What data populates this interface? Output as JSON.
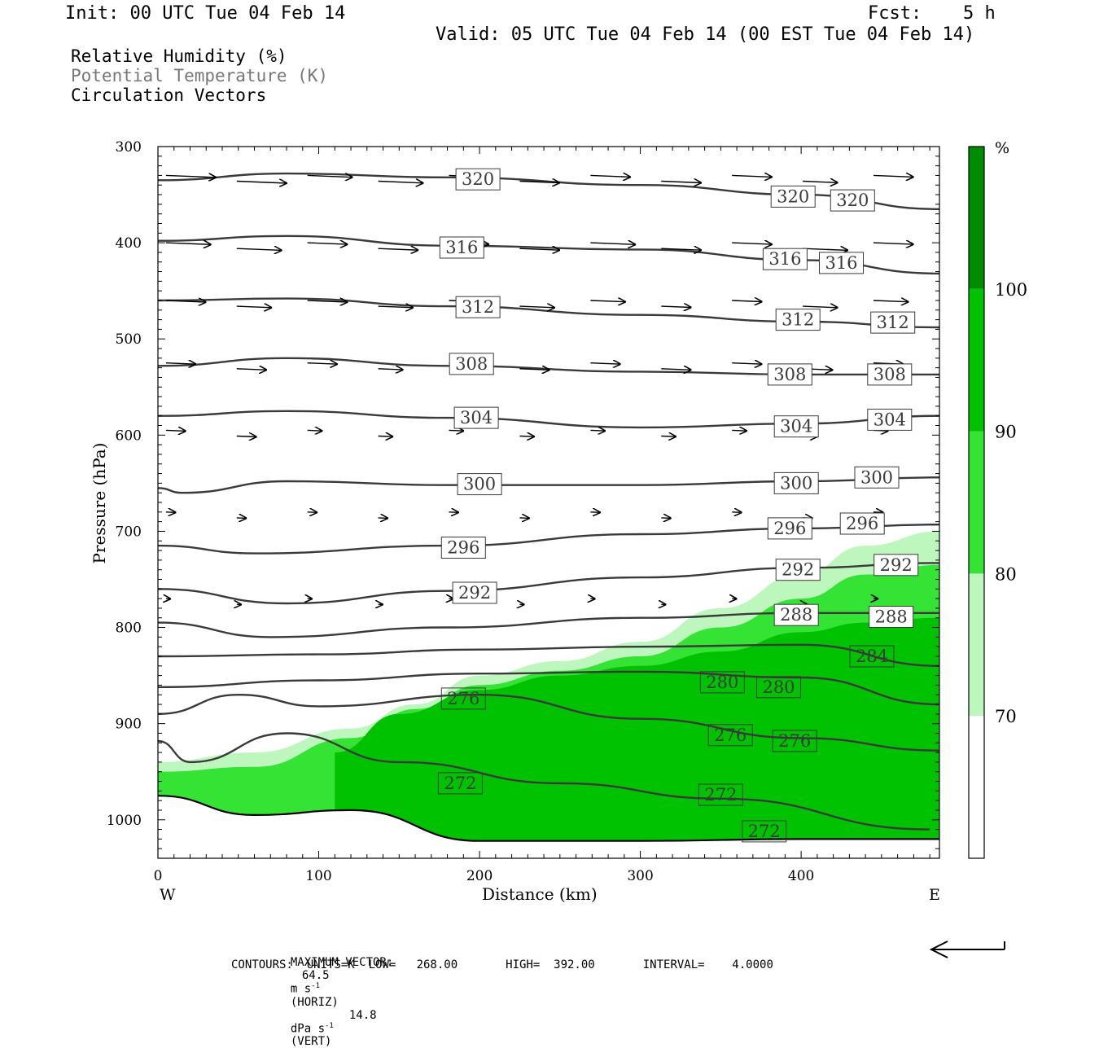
{
  "header": {
    "init": "Init: 00 UTC Tue 04 Feb 14",
    "fcst_label": "Fcst:",
    "fcst_value": "5 h",
    "valid": "Valid: 05 UTC Tue 04 Feb 14 (00 EST Tue 04 Feb 14)"
  },
  "fields": [
    {
      "label": "Relative Humidity (%)",
      "color": "#000000"
    },
    {
      "label": "Potential Temperature (K)",
      "color": "#777777"
    },
    {
      "label": "Circulation Vectors",
      "color": "#000000"
    }
  ],
  "footer": {
    "max_vector_label": "MAXIMUM VECTOR:",
    "max_horiz_value": "64.5",
    "max_horiz_units": "m s",
    "max_horiz_exp": "-1",
    "max_horiz_kind": "(HORIZ)",
    "max_vert_value": "14.8",
    "max_vert_units": "dPa s",
    "max_vert_exp": "-1",
    "max_vert_kind": "(VERT)",
    "contours": "CONTOURS:  UNITS=K  LOW=   268.00       HIGH=  392.00       INTERVAL=    4.0000"
  },
  "chart_data": {
    "type": "cross-section",
    "xlabel": "Distance (km)",
    "ylabel": "Pressure (hPa)",
    "xlim": [
      0,
      486
    ],
    "ylim": [
      1040,
      300
    ],
    "x_ticks": [
      0,
      100,
      200,
      300,
      400
    ],
    "y_ticks": [
      300,
      400,
      500,
      600,
      700,
      800,
      900,
      1000
    ],
    "west_label": "W",
    "east_label": "E",
    "rh_colorbar": {
      "unit": "%",
      "levels": [
        70,
        80,
        90,
        100
      ],
      "colors": [
        "#ffffff",
        "#bdf7bd",
        "#35e335",
        "#00c200",
        "#008c00"
      ]
    },
    "rh_bands": [
      {
        "level": "70-80",
        "color": "#bdf7bd",
        "top": [
          [
            0,
            940
          ],
          [
            60,
            930
          ],
          [
            120,
            905
          ],
          [
            160,
            880
          ],
          [
            200,
            850
          ],
          [
            250,
            835
          ],
          [
            300,
            815
          ],
          [
            350,
            780
          ],
          [
            400,
            745
          ],
          [
            440,
            715
          ],
          [
            486,
            700
          ]
        ]
      },
      {
        "level": "80-90",
        "color": "#35e335",
        "top": [
          [
            0,
            950
          ],
          [
            60,
            945
          ],
          [
            120,
            915
          ],
          [
            160,
            885
          ],
          [
            200,
            860
          ],
          [
            250,
            845
          ],
          [
            300,
            830
          ],
          [
            350,
            800
          ],
          [
            400,
            770
          ],
          [
            440,
            745
          ],
          [
            486,
            735
          ]
        ]
      },
      {
        "level": "90-100",
        "color": "#00c200",
        "top": [
          [
            110,
            930
          ],
          [
            150,
            890
          ],
          [
            200,
            865
          ],
          [
            250,
            850
          ],
          [
            300,
            840
          ],
          [
            350,
            825
          ],
          [
            400,
            805
          ],
          [
            440,
            795
          ],
          [
            486,
            790
          ]
        ]
      }
    ],
    "theta_contours": [
      {
        "value": 320,
        "points": [
          [
            0,
            335
          ],
          [
            80,
            328
          ],
          [
            180,
            332
          ],
          [
            300,
            340
          ],
          [
            400,
            350
          ],
          [
            486,
            365
          ]
        ],
        "labels": [
          [
            199,
            334
          ],
          [
            395,
            352
          ],
          [
            432,
            356
          ]
        ]
      },
      {
        "value": 316,
        "points": [
          [
            0,
            398
          ],
          [
            80,
            393
          ],
          [
            180,
            403
          ],
          [
            300,
            407
          ],
          [
            400,
            418
          ],
          [
            486,
            432
          ]
        ],
        "labels": [
          [
            189,
            405
          ],
          [
            390,
            417
          ],
          [
            425,
            421
          ]
        ]
      },
      {
        "value": 312,
        "points": [
          [
            0,
            460
          ],
          [
            80,
            458
          ],
          [
            180,
            466
          ],
          [
            300,
            475
          ],
          [
            400,
            482
          ],
          [
            486,
            488
          ]
        ],
        "labels": [
          [
            199,
            467
          ],
          [
            398,
            480
          ],
          [
            457,
            483
          ]
        ]
      },
      {
        "value": 308,
        "points": [
          [
            0,
            528
          ],
          [
            80,
            520
          ],
          [
            180,
            528
          ],
          [
            300,
            534
          ],
          [
            400,
            537
          ],
          [
            486,
            537
          ]
        ],
        "labels": [
          [
            195,
            526
          ],
          [
            393,
            537
          ],
          [
            455,
            537
          ]
        ]
      },
      {
        "value": 304,
        "points": [
          [
            0,
            580
          ],
          [
            80,
            575
          ],
          [
            180,
            582
          ],
          [
            300,
            592
          ],
          [
            400,
            588
          ],
          [
            486,
            580
          ]
        ],
        "labels": [
          [
            198,
            582
          ],
          [
            397,
            591
          ],
          [
            455,
            584
          ]
        ]
      },
      {
        "value": 300,
        "points": [
          [
            0,
            655
          ],
          [
            15,
            660
          ],
          [
            80,
            648
          ],
          [
            180,
            652
          ],
          [
            300,
            652
          ],
          [
            400,
            648
          ],
          [
            486,
            644
          ]
        ],
        "labels": [
          [
            200,
            651
          ],
          [
            397,
            650
          ],
          [
            447,
            644
          ]
        ]
      },
      {
        "value": 296,
        "points": [
          [
            0,
            715
          ],
          [
            60,
            723
          ],
          [
            180,
            715
          ],
          [
            300,
            703
          ],
          [
            400,
            697
          ],
          [
            486,
            693
          ]
        ],
        "labels": [
          [
            190,
            717
          ],
          [
            393,
            697
          ],
          [
            438,
            692
          ]
        ]
      },
      {
        "value": 292,
        "points": [
          [
            0,
            760
          ],
          [
            80,
            775
          ],
          [
            180,
            762
          ],
          [
            300,
            748
          ],
          [
            400,
            738
          ],
          [
            486,
            733
          ]
        ],
        "labels": [
          [
            197,
            764
          ],
          [
            398,
            740
          ],
          [
            459,
            735
          ]
        ]
      },
      {
        "value": 288,
        "points": [
          [
            0,
            795
          ],
          [
            70,
            810
          ],
          [
            180,
            800
          ],
          [
            300,
            790
          ],
          [
            400,
            785
          ],
          [
            486,
            785
          ]
        ],
        "labels": [
          [
            397,
            787
          ],
          [
            456,
            789
          ]
        ]
      },
      {
        "value": 284,
        "points": [
          [
            0,
            830
          ],
          [
            100,
            828
          ],
          [
            200,
            823
          ],
          [
            300,
            820
          ],
          [
            400,
            818
          ],
          [
            486,
            840
          ]
        ],
        "labels": [
          [
            444,
            830
          ]
        ]
      },
      {
        "value": 280,
        "points": [
          [
            0,
            862
          ],
          [
            100,
            855
          ],
          [
            200,
            848
          ],
          [
            300,
            846
          ],
          [
            400,
            852
          ],
          [
            486,
            880
          ]
        ],
        "labels": [
          [
            351,
            857
          ],
          [
            386,
            862
          ]
        ]
      },
      {
        "value": 276,
        "points": [
          [
            0,
            890
          ],
          [
            50,
            870
          ],
          [
            100,
            882
          ],
          [
            200,
            870
          ],
          [
            300,
            895
          ],
          [
            400,
            915
          ],
          [
            486,
            928
          ]
        ],
        "labels": [
          [
            190,
            874
          ],
          [
            356,
            912
          ],
          [
            396,
            918
          ]
        ]
      },
      {
        "value": 272,
        "points": [
          [
            0,
            918
          ],
          [
            20,
            940
          ],
          [
            80,
            910
          ],
          [
            150,
            940
          ],
          [
            250,
            962
          ],
          [
            350,
            978
          ],
          [
            480,
            1010
          ]
        ],
        "labels": [
          [
            188,
            962
          ],
          [
            350,
            974
          ],
          [
            377,
            1012
          ]
        ]
      }
    ],
    "surface": {
      "points": [
        [
          0,
          975
        ],
        [
          60,
          995
        ],
        [
          120,
          990
        ],
        [
          200,
          1022
        ],
        [
          300,
          1022
        ],
        [
          400,
          1020
        ],
        [
          486,
          1020
        ]
      ]
    },
    "vectors": [
      {
        "p": 330,
        "u": [
          1.0,
          1.0,
          0.9,
          0.9,
          0.8,
          0.8,
          0.8,
          0.8,
          0.8,
          0.7,
          0.8
        ]
      },
      {
        "p": 400,
        "u": [
          0.9,
          0.9,
          0.8,
          0.8,
          0.8,
          0.8,
          0.9,
          0.8,
          0.8,
          0.9,
          0.8
        ]
      },
      {
        "p": 460,
        "u": [
          0.8,
          0.7,
          0.8,
          0.7,
          0.8,
          0.7,
          0.7,
          0.6,
          0.6,
          0.7,
          0.7
        ]
      },
      {
        "p": 525,
        "u": [
          0.6,
          0.6,
          0.6,
          0.5,
          0.6,
          0.6,
          0.6,
          0.6,
          0.6,
          0.6,
          0.6
        ]
      },
      {
        "p": 595,
        "u": [
          0.4,
          0.4,
          0.3,
          0.3,
          0.3,
          0.3,
          0.3,
          0.3,
          0.3,
          0.3,
          0.3
        ]
      },
      {
        "p": 680,
        "u": [
          0.2,
          0.2,
          0.2,
          0.2,
          0.2,
          0.2,
          0.2,
          0.2,
          0.2,
          0.2,
          0.2
        ]
      },
      {
        "p": 770,
        "u": [
          0.1,
          0.1,
          0.1,
          0.1,
          0.1,
          0.1,
          0.1,
          0.1,
          0.1,
          0.1,
          0.1
        ]
      }
    ]
  }
}
